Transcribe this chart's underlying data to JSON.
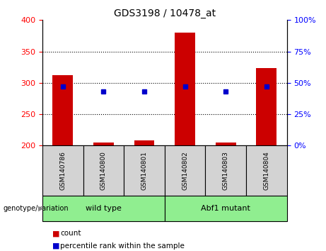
{
  "title": "GDS3198 / 10478_at",
  "samples": [
    "GSM140786",
    "GSM140800",
    "GSM140801",
    "GSM140802",
    "GSM140803",
    "GSM140804"
  ],
  "counts": [
    312,
    205,
    208,
    380,
    205,
    324
  ],
  "percentiles": [
    47,
    43,
    43,
    47,
    43,
    47
  ],
  "ylim_left": [
    200,
    400
  ],
  "ylim_right": [
    0,
    100
  ],
  "yticks_left": [
    200,
    250,
    300,
    350,
    400
  ],
  "yticks_right": [
    0,
    25,
    50,
    75,
    100
  ],
  "bar_color": "#cc0000",
  "scatter_color": "#0000cc",
  "bar_width": 0.5,
  "genotype_label": "genotype/variation",
  "legend_count_label": "count",
  "legend_pct_label": "percentile rank within the sample",
  "bg_plot": "#ffffff",
  "bg_samples": "#d3d3d3",
  "bg_group": "#90EE90",
  "group_labels": [
    "wild type",
    "Abf1 mutant"
  ],
  "group_sizes": [
    3,
    3
  ]
}
